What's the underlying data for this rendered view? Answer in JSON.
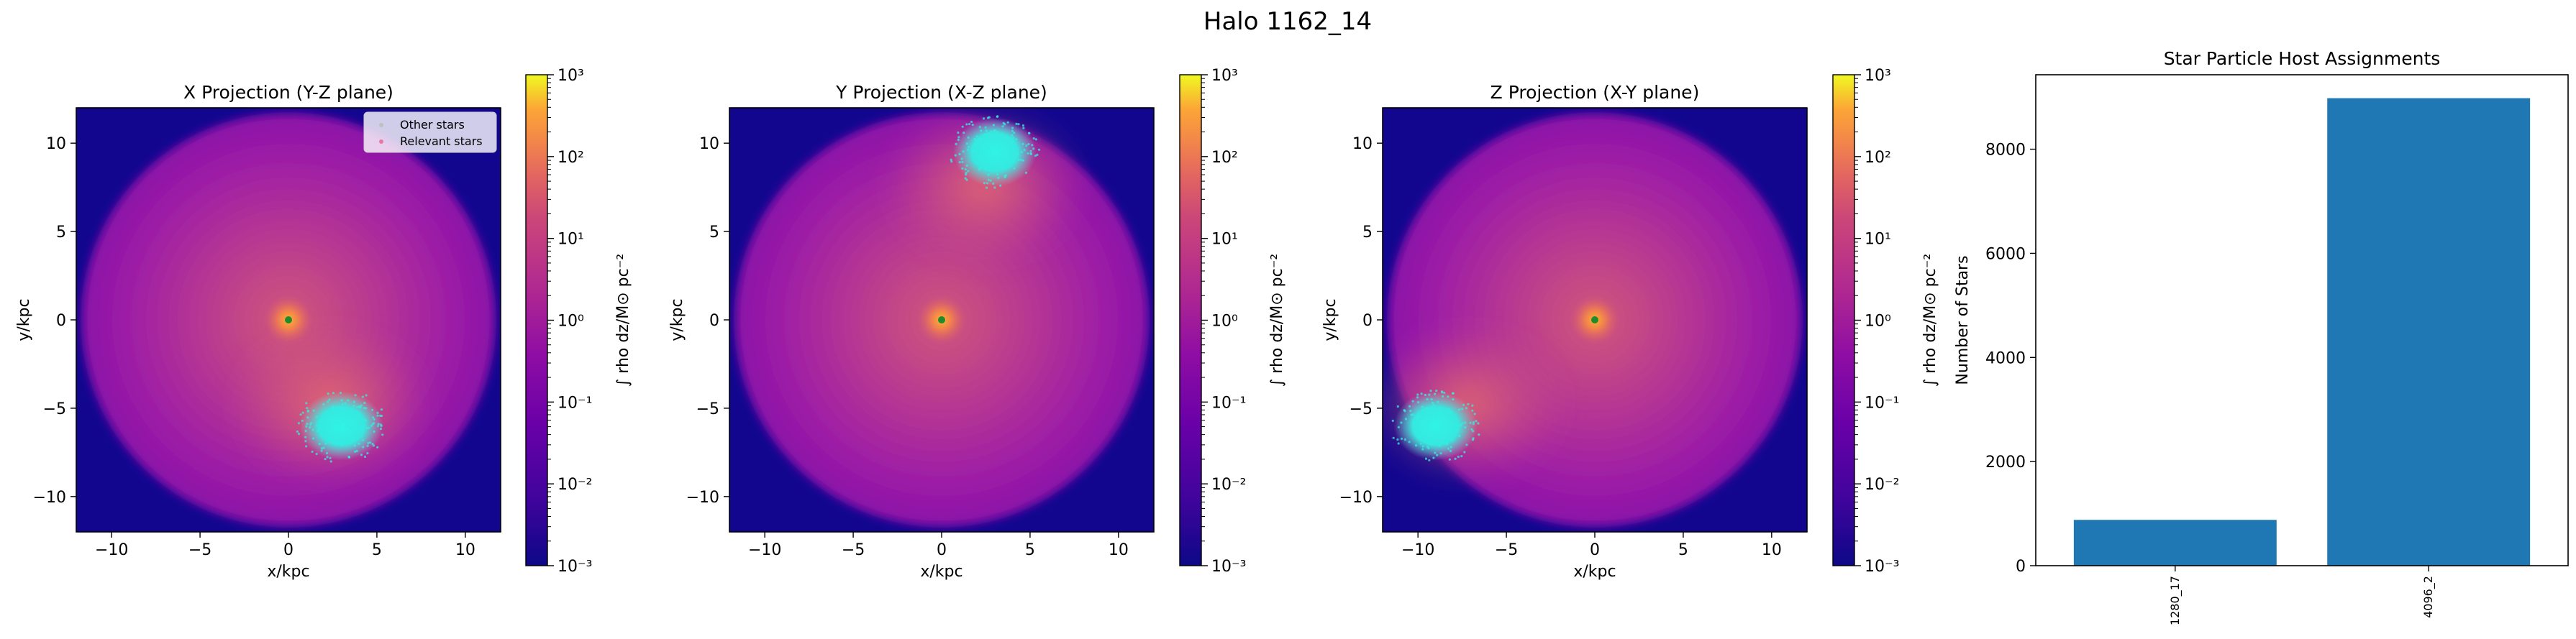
{
  "figure": {
    "title": "Halo 1162_14"
  },
  "colors": {
    "bar": "#1f77b4",
    "center_marker": "#1e8c2e",
    "star_cloud": "#33eee0",
    "background_void": "#12068f"
  },
  "colormap": "plasma",
  "chart_data": [
    {
      "type": "heatmap",
      "title": "X Projection (Y-Z plane)",
      "xlabel": "x/kpc",
      "ylabel": "y/kpc",
      "xlim": [
        -12,
        12
      ],
      "ylim": [
        -12,
        12
      ],
      "xticks": [
        "−10",
        "−5",
        "0",
        "5",
        "10"
      ],
      "yticks": [
        "−10",
        "−5",
        "0",
        "5",
        "10"
      ],
      "colorbar": {
        "label": "∫ rho dz/M⊙ pc⁻²",
        "scale": "log",
        "range": [
          0.001,
          1000
        ],
        "ticks": [
          "10⁻³",
          "10⁻²",
          "10⁻¹",
          "10⁰",
          "10¹",
          "10²",
          "10³"
        ]
      },
      "legend": {
        "placement": "top-right",
        "entries": [
          "Other stars",
          "Relevant stars"
        ]
      },
      "center": [
        0,
        0
      ],
      "star_cluster": [
        3,
        -6
      ]
    },
    {
      "type": "heatmap",
      "title": "Y Projection (X-Z plane)",
      "xlabel": "x/kpc",
      "ylabel": "y/kpc",
      "xlim": [
        -12,
        12
      ],
      "ylim": [
        -12,
        12
      ],
      "xticks": [
        "−10",
        "−5",
        "0",
        "5",
        "10"
      ],
      "yticks": [
        "−10",
        "−5",
        "0",
        "5",
        "10"
      ],
      "colorbar": {
        "label": "∫ rho dz/M⊙ pc⁻²",
        "scale": "log",
        "range": [
          0.001,
          1000
        ],
        "ticks": [
          "10⁻³",
          "10⁻²",
          "10⁻¹",
          "10⁰",
          "10¹",
          "10²",
          "10³"
        ]
      },
      "center": [
        0,
        0
      ],
      "star_cluster": [
        3,
        9.5
      ]
    },
    {
      "type": "heatmap",
      "title": "Z Projection (X-Y plane)",
      "xlabel": "x/kpc",
      "ylabel": "y/kpc",
      "xlim": [
        -12,
        12
      ],
      "ylim": [
        -12,
        12
      ],
      "xticks": [
        "−10",
        "−5",
        "0",
        "5",
        "10"
      ],
      "yticks": [
        "−10",
        "−5",
        "0",
        "5",
        "10"
      ],
      "colorbar": {
        "label": "∫ rho dz/M⊙ pc⁻²",
        "scale": "log",
        "range": [
          0.001,
          1000
        ],
        "ticks": [
          "10⁻³",
          "10⁻²",
          "10⁻¹",
          "10⁰",
          "10¹",
          "10²",
          "10³"
        ]
      },
      "center": [
        0,
        0
      ],
      "star_cluster": [
        -9,
        -6
      ]
    },
    {
      "type": "bar",
      "title": "Star Particle Host Assignments",
      "xlabel": "",
      "ylabel": "Number of Stars",
      "categories": [
        "1280_17",
        "4096_2"
      ],
      "values": [
        880,
        8980
      ],
      "ylim": [
        0,
        9430
      ],
      "yticks": [
        "0",
        "2000",
        "4000",
        "6000",
        "8000"
      ]
    }
  ]
}
